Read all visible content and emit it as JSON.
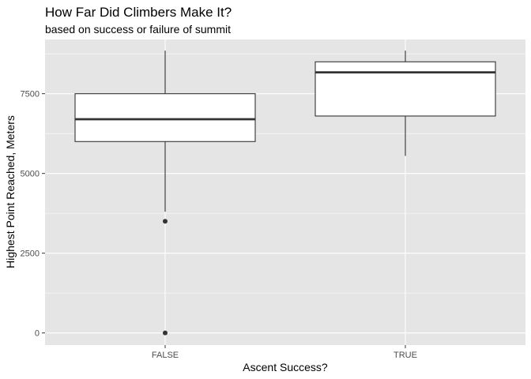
{
  "chart_data": {
    "type": "boxplot",
    "title": "How Far Did Climbers Make It?",
    "subtitle": "based on success or failure of summit",
    "xlabel": "Ascent Success?",
    "ylabel": "Highest Point Reached, Meters",
    "categories": [
      "FALSE",
      "TRUE"
    ],
    "ylim": [
      -380,
      9200
    ],
    "yticks": [
      0,
      2500,
      5000,
      7500
    ],
    "ytick_labels": [
      "0",
      "2500",
      "5000",
      "7500"
    ],
    "grid": true,
    "colors": {
      "panel": "#e5e5e5",
      "grid_major": "#ffffff",
      "box_fill": "#ffffff",
      "box_line": "#333333",
      "outlier": "#333333",
      "tick_label": "#4d4d4d"
    },
    "boxes": [
      {
        "category": "FALSE",
        "min": 3800,
        "q1": 6000,
        "median": 6700,
        "q3": 7500,
        "max": 8850,
        "outliers": [
          3500,
          0
        ]
      },
      {
        "category": "TRUE",
        "min": 5550,
        "q1": 6800,
        "median": 8170,
        "q3": 8500,
        "max": 8850,
        "outliers": []
      }
    ]
  }
}
